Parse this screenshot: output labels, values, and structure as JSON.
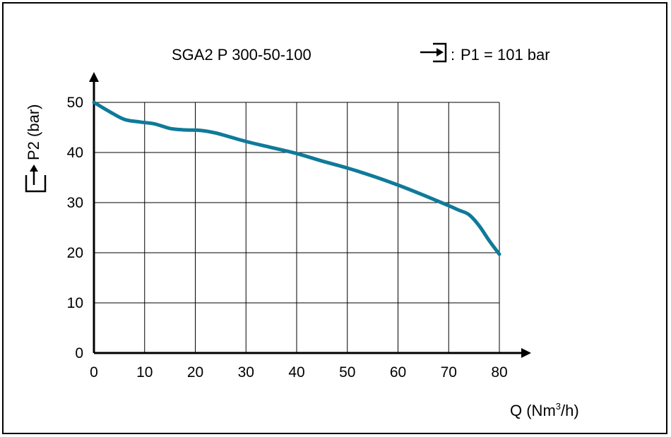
{
  "chart_data": {
    "type": "line",
    "title": "SGA2 P 300-50-100",
    "inlet_label": "P1 = 101 bar",
    "inlet_separator": ":",
    "ylabel": "P2 (bar)",
    "xlabel_main": "Q (Nm",
    "xlabel_sup": "3",
    "xlabel_tail": "/h)",
    "xlim": [
      0,
      80
    ],
    "ylim": [
      0,
      50
    ],
    "xticks": [
      0,
      10,
      20,
      30,
      40,
      50,
      60,
      70,
      80
    ],
    "yticks": [
      0,
      10,
      20,
      30,
      40,
      50
    ],
    "grid": true,
    "series": [
      {
        "color": "#0f7a99",
        "x": [
          0,
          3,
          6,
          9,
          12,
          15,
          18,
          21,
          24,
          30,
          35,
          40,
          45,
          50,
          55,
          60,
          65,
          70,
          72,
          74,
          76,
          78,
          80
        ],
        "y": [
          50,
          48.2,
          46.6,
          46.1,
          45.7,
          44.8,
          44.5,
          44.4,
          43.9,
          42.2,
          41.0,
          39.8,
          38.3,
          36.9,
          35.3,
          33.5,
          31.5,
          29.4,
          28.5,
          27.6,
          25.4,
          22.4,
          19.7
        ]
      }
    ]
  }
}
